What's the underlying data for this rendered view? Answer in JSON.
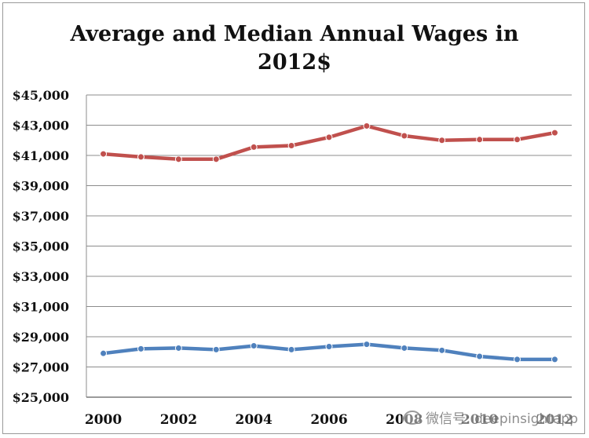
{
  "chart_data": {
    "type": "line",
    "title_lines": [
      "Average and Median Annual Wages in",
      "2012$"
    ],
    "xlabel": "",
    "ylabel": "",
    "x": [
      2000,
      2001,
      2002,
      2003,
      2004,
      2005,
      2006,
      2007,
      2008,
      2009,
      2010,
      2011,
      2012
    ],
    "x_tick_labels": [
      "2000",
      "2002",
      "2004",
      "2006",
      "2008",
      "2010",
      "2012"
    ],
    "x_tick_values": [
      2000,
      2002,
      2004,
      2006,
      2008,
      2010,
      2012
    ],
    "y_tick_labels": [
      "$45,000",
      "$43,000",
      "$41,000",
      "$39,000",
      "$37,000",
      "$35,000",
      "$33,000",
      "$31,000",
      "$29,000",
      "$27,000",
      "$25,000"
    ],
    "y_tick_values": [
      45000,
      43000,
      41000,
      39000,
      37000,
      35000,
      33000,
      31000,
      29000,
      27000,
      25000
    ],
    "ylim": [
      25000,
      45000
    ],
    "grid": true,
    "legend": "none",
    "series": [
      {
        "color": "#c0504d",
        "values": [
          41100,
          40900,
          40750,
          40750,
          41550,
          41650,
          42200,
          42950,
          42300,
          42000,
          42050,
          42050,
          42500
        ]
      },
      {
        "color": "#4f81bd",
        "values": [
          27900,
          28200,
          28250,
          28150,
          28400,
          28150,
          28350,
          28500,
          28250,
          28100,
          27700,
          27500,
          27500
        ]
      }
    ]
  },
  "watermark": "微信号: deepinsightapp"
}
